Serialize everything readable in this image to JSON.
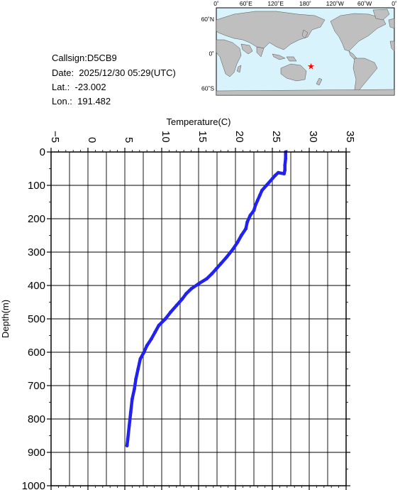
{
  "info": {
    "callsign": "Callsign:D5CB9",
    "date": "Date:  2025/12/30 05:29(UTC)",
    "lat": "Lat.:  -23.002",
    "lon": "Lon.:  191.482"
  },
  "map": {
    "top_labels": [
      "0˚",
      "60˚E",
      "120˚E",
      "180˚",
      "120˚W",
      "60˚W",
      "0˚"
    ],
    "left_labels": [
      "60˚N",
      "0˚",
      "60˚S"
    ],
    "marker": {
      "lat": -23.002,
      "lon": 191.482
    },
    "marker_color": "#ff0000",
    "land_color": "#bfbfbf",
    "ocean_color": "#d8f3fb"
  },
  "chart_data": {
    "type": "line",
    "xlabel": "Temperature(C)",
    "ylabel": "Depth(m)",
    "xlim": [
      -5,
      35
    ],
    "ylim": [
      0,
      1000
    ],
    "x_ticks": [
      -5,
      0,
      5,
      10,
      15,
      20,
      25,
      30,
      35
    ],
    "y_ticks": [
      0,
      100,
      200,
      300,
      400,
      500,
      600,
      700,
      800,
      900,
      1000
    ],
    "y_inverted": true,
    "grid": true,
    "series_color": "#2222ee",
    "series": [
      {
        "x": [
          26.8,
          26.8,
          26.7,
          26.7,
          26.6,
          25.8,
          25.4,
          25.0,
          24.2,
          23.6,
          23.3,
          23.0,
          22.7,
          22.5,
          22.0,
          21.6,
          21.4,
          20.8,
          20.3,
          19.7,
          18.8,
          18.0,
          17.4,
          16.8,
          16.1,
          15.0,
          14.0,
          13.3,
          12.8,
          12.0,
          11.2,
          10.5,
          9.6,
          9.1,
          8.6,
          8.0,
          7.6,
          7.1,
          6.8,
          6.5,
          6.3,
          6.0,
          5.8,
          5.6,
          5.4,
          5.3
        ],
        "y": [
          0,
          20,
          40,
          55,
          65,
          62,
          70,
          80,
          100,
          115,
          130,
          145,
          160,
          175,
          190,
          210,
          230,
          250,
          270,
          290,
          315,
          335,
          350,
          365,
          380,
          395,
          410,
          425,
          440,
          460,
          480,
          500,
          520,
          540,
          560,
          580,
          600,
          620,
          650,
          680,
          710,
          740,
          780,
          820,
          860,
          880
        ]
      }
    ]
  }
}
